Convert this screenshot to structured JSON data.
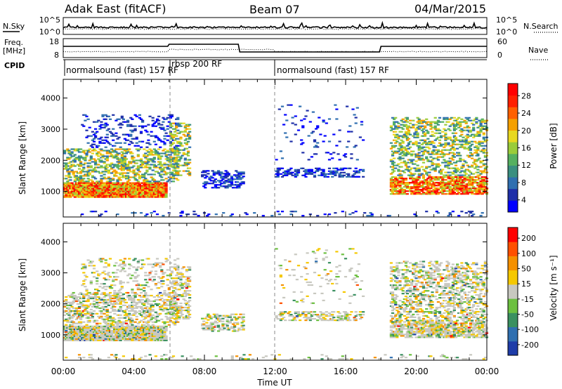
{
  "header": {
    "station": "Adak East (fitACF)",
    "beam": "Beam 07",
    "date": "04/Mar/2015"
  },
  "strips": {
    "nsky_label": "N.Sky",
    "nsearch_label": "N.Search",
    "noise_ticks": [
      "10^5",
      "10^0"
    ],
    "freq_label": "Freq.",
    "freq_unit": "[MHz]",
    "freq_ticks": [
      "18",
      "8"
    ],
    "nave_label": "Nave",
    "nave_ticks": [
      "60",
      "0"
    ],
    "cpid_label": "CPID",
    "cpid_segments": [
      {
        "label": "normalsound (fast) 157 RF",
        "start_h": 0,
        "end_h": 6
      },
      {
        "label": "rbsp 200 RF",
        "start_h": 6,
        "end_h": 12
      },
      {
        "label": "normalsound (fast) 157 RF",
        "start_h": 12,
        "end_h": 24
      }
    ]
  },
  "chart_data": {
    "type": "heatmap",
    "x_ticks": [
      "00:00",
      "04:00",
      "08:00",
      "12:00",
      "16:00",
      "20:00",
      "00:00"
    ],
    "xlabel": "Time UT",
    "xlim": [
      0,
      24
    ],
    "panels": [
      {
        "name": "power",
        "ylabel": "Slant Range [km]",
        "ylim": [
          180,
          4600
        ],
        "y_ticks": [
          1000,
          2000,
          3000,
          4000
        ],
        "colorbar_label": "Power [dB]",
        "colorbar_ticks": [
          "28",
          "24",
          "20",
          "16",
          "12",
          "8",
          "4"
        ],
        "colors": [
          "#0000ff",
          "#1e2fa8",
          "#2f6fb0",
          "#3a8f80",
          "#55b060",
          "#9acc3a",
          "#e8d820",
          "#f5a000",
          "#ff6000",
          "#ff2000",
          "#ff0000"
        ]
      },
      {
        "name": "velocity",
        "ylabel": "Slant Range [km]",
        "ylim": [
          180,
          4600
        ],
        "y_ticks": [
          1000,
          2000,
          3000,
          4000
        ],
        "colorbar_label": "Velocity [m s⁻¹]",
        "colorbar_ticks": [
          "200",
          "100",
          "50",
          "15",
          "-15",
          "-50",
          "-100",
          "-200"
        ],
        "colors": [
          "#1e3ca8",
          "#2f6fb0",
          "#3a9060",
          "#6cc040",
          "#c8c8c0",
          "#f5c800",
          "#f59000",
          "#ff5000",
          "#ff0000"
        ]
      }
    ]
  }
}
